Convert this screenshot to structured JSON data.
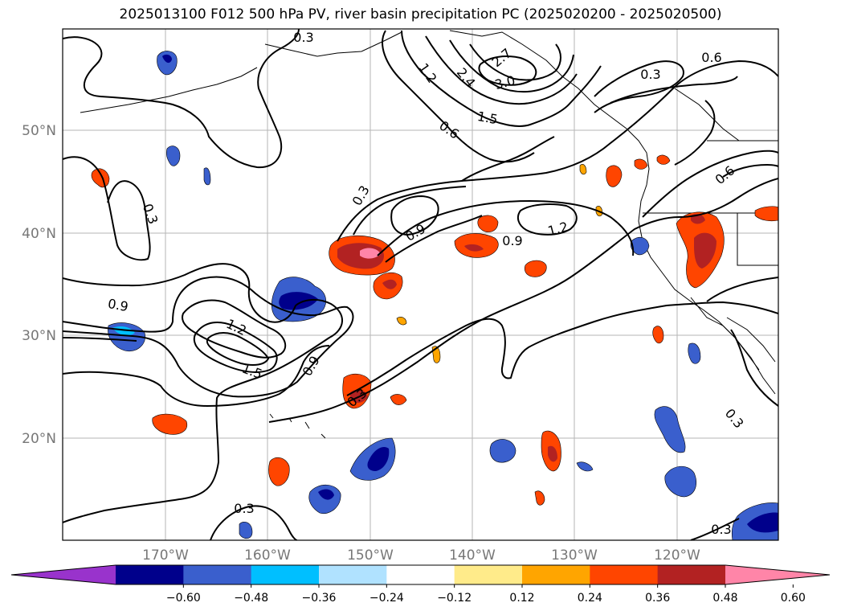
{
  "title": "2025013100 F012 500 hPa PV, river basin precipitation PC (2025020200 - 2025020500)",
  "lat_labels": [
    "50°N",
    "40°N",
    "30°N",
    "20°N"
  ],
  "lon_labels": [
    "170°W",
    "160°W",
    "150°W",
    "140°W",
    "130°W",
    "120°W"
  ],
  "contour_labels": [
    "0.3",
    "0.3",
    "0.3",
    "0.3",
    "0.3",
    "0.3",
    "0.3",
    "0.3",
    "0.6",
    "0.6",
    "0.6",
    "0.9",
    "0.9",
    "0.9",
    "0.9",
    "1.2",
    "1.2",
    "1.2",
    "1.5",
    "1.5",
    "2.4",
    "2.7",
    "3.0"
  ],
  "colorbar": {
    "ticks": [
      "−0.60",
      "−0.48",
      "−0.36",
      "−0.24",
      "−0.12",
      "0.12",
      "0.24",
      "0.36",
      "0.48",
      "0.60"
    ],
    "colors": [
      "#9933cc",
      "#00008b",
      "#3a5fcd",
      "#00bfff",
      "#b0e2ff",
      "#ffffff",
      "#ffeb8a",
      "#ffa500",
      "#ff4500",
      "#b22222",
      "#ff85a8"
    ]
  }
}
